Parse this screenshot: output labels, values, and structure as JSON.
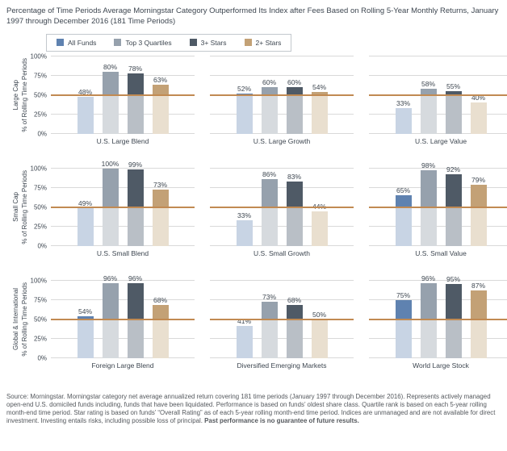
{
  "title": "Percentage of Time Periods Average Morningstar Category Outperformed Its Index after Fees Based on Rolling 5-Year Monthly Returns, January 1997 through December 2016 (181 Time Periods)",
  "chart_data": {
    "type": "bar",
    "title": "Percentage of Time Periods Average Morningstar Category Outperformed Its Index after Fees Based on Rolling 5-Year Monthly Returns, January 1997 through December 2016 (181 Time Periods)",
    "ylabel": "% of Rolling Time Periods",
    "ylim": [
      0,
      100
    ],
    "grid": true,
    "legend_position": "top-left",
    "yticks": [
      {
        "label": "100%",
        "value": 100
      },
      {
        "label": "75%",
        "value": 75
      },
      {
        "label": "50%",
        "value": 50
      },
      {
        "label": "25%",
        "value": 25
      },
      {
        "label": "0%",
        "value": 0
      }
    ],
    "gridline_values": [
      0,
      25,
      50,
      75,
      100
    ],
    "reference_line": {
      "value": 50,
      "color": "#c18a52"
    },
    "series": [
      {
        "name": "All Funds",
        "color": "#5f82b0",
        "faded_color": "#c8d4e4"
      },
      {
        "name": "Top 3 Quartiles",
        "color": "#96a1ad",
        "faded_color": "#d6dade"
      },
      {
        "name": "3+ Stars",
        "color": "#4f5a66",
        "faded_color": "#b9bfc6"
      },
      {
        "name": "2+ Stars",
        "color": "#c3a176",
        "faded_color": "#e9dfcf"
      }
    ],
    "rows": [
      {
        "row_label": "Large Cap",
        "charts": [
          {
            "title": "U.S. Large Blend",
            "values": [
              48,
              80,
              78,
              63
            ]
          },
          {
            "title": "U.S. Large Growth",
            "values": [
              52,
              60,
              60,
              54
            ]
          },
          {
            "title": "U.S. Large Value",
            "values": [
              33,
              58,
              55,
              40
            ]
          }
        ]
      },
      {
        "row_label": "Small Cap",
        "charts": [
          {
            "title": "U.S. Small Blend",
            "values": [
              49,
              100,
              99,
              73
            ]
          },
          {
            "title": "U.S. Small Growth",
            "values": [
              33,
              86,
              83,
              44
            ]
          },
          {
            "title": "U.S. Small Value",
            "values": [
              65,
              98,
              92,
              79
            ]
          }
        ]
      },
      {
        "row_label": "Global & International",
        "charts": [
          {
            "title": "Foreign Large Blend",
            "values": [
              54,
              96,
              96,
              68
            ]
          },
          {
            "title": "Diversified Emerging Markets",
            "values": [
              41,
              73,
              68,
              50
            ]
          },
          {
            "title": "World Large Stock",
            "values": [
              75,
              96,
              95,
              87
            ]
          }
        ]
      }
    ]
  },
  "footer": {
    "text": "Source: Morningstar. Morningstar category net average annualized return covering 181 time periods (January 1997 through December 2016). Represents actively managed open-end U.S. domiciled funds including, funds that have been liquidated. Performance is based on funds’ oldest share class. Quartile rank is based on each 5-year rolling month-end time period. Star rating is based on funds’ “Overall Rating” as of each 5-year rolling month-end time period. Indices are unmanaged and are not available for direct investment. Investing entails risks, including possible loss of principal. ",
    "bold": "Past performance is no guarantee of future results."
  }
}
